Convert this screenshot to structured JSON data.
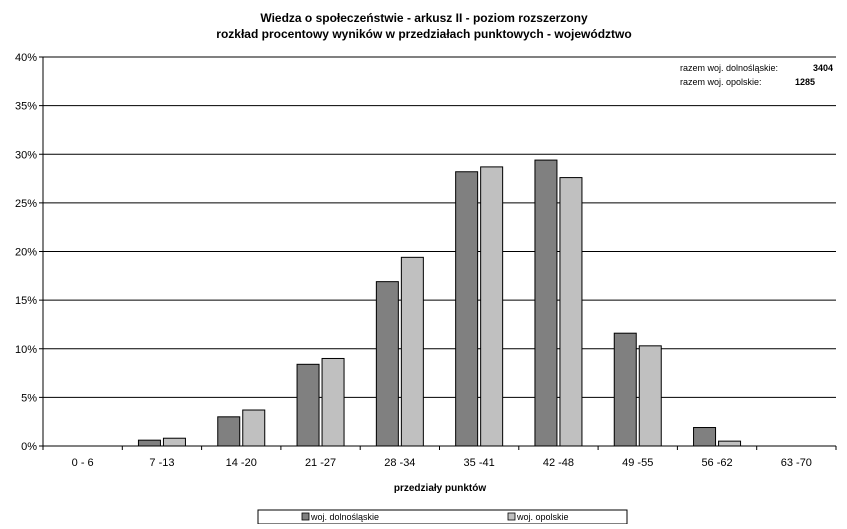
{
  "chart_data": {
    "type": "bar",
    "title": "Wiedza o społeczeństwie - arkusz II - poziom rozszerzony",
    "subtitle": "rozkład procentowy wyników w przedziałach punktowych - województwo",
    "xlabel": "przedziały punktów",
    "ylabel": "",
    "ylim": [
      0,
      40
    ],
    "yticks": [
      "0%",
      "5%",
      "10%",
      "15%",
      "20%",
      "25%",
      "30%",
      "35%",
      "40%"
    ],
    "grid": true,
    "legend_position": "bottom",
    "categories": [
      "0 - 6",
      "7 -13",
      "14 -20",
      "21 -27",
      "28 -34",
      "35 -41",
      "42 -48",
      "49 -55",
      "56 -62",
      "63 -70"
    ],
    "series": [
      {
        "name": "woj. dolnośląskie",
        "color": "#808080",
        "values": [
          0,
          0.6,
          3.0,
          8.4,
          16.9,
          28.2,
          29.4,
          11.6,
          1.9,
          0
        ]
      },
      {
        "name": "woj. opolskie",
        "color": "#c0c0c0",
        "values": [
          0,
          0.8,
          3.7,
          9.0,
          19.4,
          28.7,
          27.6,
          10.3,
          0.5,
          0
        ]
      }
    ],
    "annotations": [
      {
        "label": "razem woj. dolnośląskie:",
        "value": "3404"
      },
      {
        "label": "razem woj. opolskie:",
        "value": "1285"
      }
    ]
  }
}
